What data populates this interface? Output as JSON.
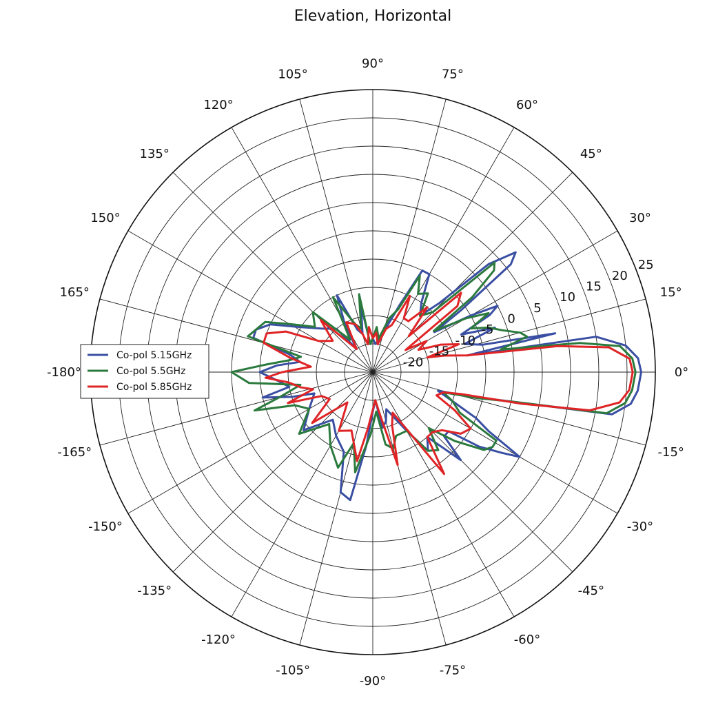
{
  "chart_data": {
    "type": "polar-line",
    "title": "Elevation, Horizontal",
    "angle_labels": [
      "0°",
      "15°",
      "30°",
      "45°",
      "60°",
      "75°",
      "90°",
      "105°",
      "120°",
      "135°",
      "150°",
      "165°",
      "-180°",
      "-165°",
      "-150°",
      "-135°",
      "-120°",
      "-105°",
      "-90°",
      "-75°",
      "-60°",
      "-45°",
      "-30°",
      "-15°"
    ],
    "angle_values_deg": [
      0,
      15,
      30,
      45,
      60,
      75,
      90,
      105,
      120,
      135,
      150,
      165,
      180,
      195,
      210,
      225,
      240,
      255,
      270,
      285,
      300,
      315,
      330,
      345
    ],
    "radial_axis": {
      "range": [
        -25,
        25
      ],
      "tick_values": [
        -20,
        -15,
        -10,
        -5,
        0,
        5,
        10,
        15,
        20,
        25
      ],
      "tick_labels": [
        "-20",
        "-15",
        "-10",
        "-5",
        "0",
        "5",
        "10",
        "15",
        "20",
        "25"
      ],
      "label_angle_deg": 22.5
    },
    "grid": true,
    "legend": {
      "position": "left"
    },
    "series": [
      {
        "name": "Co-pol 5.15GHz",
        "color": "#3a4fa3",
        "points": [
          [
            0,
            22.5
          ],
          [
            3,
            22
          ],
          [
            6,
            20
          ],
          [
            9,
            15
          ],
          [
            10,
            -8
          ],
          [
            12,
            8
          ],
          [
            14,
            -5
          ],
          [
            17,
            -8
          ],
          [
            20,
            -2
          ],
          [
            23,
            -8
          ],
          [
            26,
            -2
          ],
          [
            28,
            0
          ],
          [
            30,
            -5
          ],
          [
            33,
            -12
          ],
          [
            35,
            -6
          ],
          [
            38,
            6
          ],
          [
            40,
            8
          ],
          [
            43,
            3
          ],
          [
            46,
            -8
          ],
          [
            50,
            -12
          ],
          [
            55,
            -10
          ],
          [
            60,
            -5
          ],
          [
            64,
            -5
          ],
          [
            68,
            -12
          ],
          [
            72,
            -16
          ],
          [
            78,
            -19
          ],
          [
            85,
            -20
          ],
          [
            90,
            -19
          ],
          [
            95,
            -20
          ],
          [
            100,
            -13
          ],
          [
            105,
            -18
          ],
          [
            110,
            -17
          ],
          [
            115,
            -10
          ],
          [
            120,
            -15
          ],
          [
            125,
            -20
          ],
          [
            130,
            -15
          ],
          [
            140,
            -13
          ],
          [
            148,
            -10
          ],
          [
            155,
            -5
          ],
          [
            160,
            -3
          ],
          [
            164,
            -3
          ],
          [
            168,
            -10
          ],
          [
            172,
            -12
          ],
          [
            176,
            -8
          ],
          [
            180,
            -5
          ],
          [
            185,
            -8
          ],
          [
            190,
            -10
          ],
          [
            193,
            -5
          ],
          [
            197,
            -10
          ],
          [
            200,
            -14
          ],
          [
            210,
            -12
          ],
          [
            220,
            -9
          ],
          [
            230,
            -14
          ],
          [
            240,
            -12
          ],
          [
            250,
            -10
          ],
          [
            255,
            -3
          ],
          [
            260,
            -2
          ],
          [
            265,
            -12
          ],
          [
            270,
            -18
          ],
          [
            275,
            -20
          ],
          [
            280,
            -15
          ],
          [
            285,
            -16
          ],
          [
            290,
            -18
          ],
          [
            300,
            -13
          ],
          [
            305,
            -8
          ],
          [
            310,
            -10
          ],
          [
            315,
            -3
          ],
          [
            318,
            -8
          ],
          [
            322,
            -8
          ],
          [
            325,
            -2
          ],
          [
            328,
            2
          ],
          [
            330,
            5
          ],
          [
            333,
            -2
          ],
          [
            336,
            -5
          ],
          [
            340,
            -10
          ],
          [
            344,
            -13
          ],
          [
            346,
            -7
          ],
          [
            348,
            0
          ],
          [
            350,
            18
          ],
          [
            353,
            21
          ],
          [
            356,
            22
          ],
          [
            360,
            22.5
          ]
        ]
      },
      {
        "name": "Co-pol 5.5GHz",
        "color": "#2b7a3d",
        "points": [
          [
            0,
            21.5
          ],
          [
            3,
            21
          ],
          [
            6,
            19
          ],
          [
            8,
            12
          ],
          [
            10,
            -2
          ],
          [
            13,
            3
          ],
          [
            15,
            2
          ],
          [
            18,
            -1
          ],
          [
            21,
            -3
          ],
          [
            24,
            -6
          ],
          [
            27,
            -2
          ],
          [
            30,
            -6
          ],
          [
            34,
            -12
          ],
          [
            37,
            -3
          ],
          [
            40,
            3
          ],
          [
            42,
            4
          ],
          [
            45,
            -10
          ],
          [
            50,
            -12
          ],
          [
            55,
            -8
          ],
          [
            60,
            -9
          ],
          [
            64,
            -6
          ],
          [
            68,
            -13
          ],
          [
            73,
            -15
          ],
          [
            80,
            -19
          ],
          [
            85,
            -17
          ],
          [
            90,
            -19
          ],
          [
            95,
            -20
          ],
          [
            100,
            -11
          ],
          [
            105,
            -17
          ],
          [
            110,
            -16
          ],
          [
            118,
            -10
          ],
          [
            125,
            -18
          ],
          [
            135,
            -10
          ],
          [
            142,
            -12
          ],
          [
            150,
            -8
          ],
          [
            155,
            -4
          ],
          [
            160,
            -3
          ],
          [
            164,
            -2
          ],
          [
            168,
            -12
          ],
          [
            172,
            -10
          ],
          [
            176,
            -6
          ],
          [
            180,
            0
          ],
          [
            185,
            -3
          ],
          [
            190,
            -12
          ],
          [
            195,
            -8
          ],
          [
            198,
            -3
          ],
          [
            203,
            -10
          ],
          [
            210,
            -12
          ],
          [
            220,
            -8
          ],
          [
            230,
            -13
          ],
          [
            240,
            -10
          ],
          [
            250,
            -7
          ],
          [
            255,
            -12
          ],
          [
            260,
            -7
          ],
          [
            268,
            -14
          ],
          [
            275,
            -18
          ],
          [
            280,
            -12
          ],
          [
            285,
            -11
          ],
          [
            290,
            -13
          ],
          [
            300,
            -13
          ],
          [
            305,
            -8
          ],
          [
            310,
            -7
          ],
          [
            315,
            -11
          ],
          [
            320,
            -6
          ],
          [
            325,
            -1
          ],
          [
            328,
            0
          ],
          [
            331,
            0
          ],
          [
            335,
            -8
          ],
          [
            340,
            -10
          ],
          [
            344,
            -12
          ],
          [
            346,
            -6
          ],
          [
            348,
            0
          ],
          [
            350,
            17
          ],
          [
            353,
            20
          ],
          [
            356,
            21
          ],
          [
            360,
            21.5
          ]
        ]
      },
      {
        "name": "Co-pol 5.85GHz",
        "color": "#e02426",
        "points": [
          [
            0,
            21
          ],
          [
            3,
            20.5
          ],
          [
            6,
            17
          ],
          [
            8,
            8
          ],
          [
            10,
            -8
          ],
          [
            13,
            -12
          ],
          [
            15,
            -15
          ],
          [
            18,
            -9
          ],
          [
            22,
            -12
          ],
          [
            26,
            -16
          ],
          [
            30,
            -14
          ],
          [
            34,
            -18
          ],
          [
            38,
            -6
          ],
          [
            42,
            -4
          ],
          [
            45,
            -16
          ],
          [
            50,
            -10
          ],
          [
            55,
            -14
          ],
          [
            60,
            -14
          ],
          [
            64,
            -10
          ],
          [
            68,
            -16
          ],
          [
            73,
            -17
          ],
          [
            80,
            -20
          ],
          [
            85,
            -18
          ],
          [
            90,
            -19
          ],
          [
            95,
            -17
          ],
          [
            100,
            -20
          ],
          [
            105,
            -18
          ],
          [
            110,
            -16
          ],
          [
            118,
            -15
          ],
          [
            125,
            -20
          ],
          [
            135,
            -12
          ],
          [
            142,
            -16
          ],
          [
            150,
            -14
          ],
          [
            155,
            -8
          ],
          [
            160,
            -5
          ],
          [
            165,
            -5
          ],
          [
            170,
            -10
          ],
          [
            175,
            -14
          ],
          [
            180,
            -9
          ],
          [
            183,
            -6
          ],
          [
            187,
            -10
          ],
          [
            192,
            -12
          ],
          [
            196,
            -14
          ],
          [
            200,
            -9
          ],
          [
            205,
            -15
          ],
          [
            212,
            -16
          ],
          [
            220,
            -11
          ],
          [
            230,
            -18
          ],
          [
            240,
            -13
          ],
          [
            250,
            -14
          ],
          [
            255,
            -12
          ],
          [
            260,
            -9
          ],
          [
            265,
            -15
          ],
          [
            275,
            -20
          ],
          [
            280,
            -17
          ],
          [
            285,
            -8
          ],
          [
            290,
            -15
          ],
          [
            296,
            -17
          ],
          [
            300,
            -14
          ],
          [
            305,
            -3
          ],
          [
            310,
            -10
          ],
          [
            315,
            -10
          ],
          [
            320,
            -9
          ],
          [
            325,
            -6
          ],
          [
            330,
            -5
          ],
          [
            335,
            -9
          ],
          [
            340,
            -13
          ],
          [
            344,
            -12
          ],
          [
            346,
            -9
          ],
          [
            348,
            2
          ],
          [
            350,
            14
          ],
          [
            353,
            19
          ],
          [
            356,
            20.5
          ],
          [
            360,
            21
          ]
        ]
      }
    ]
  }
}
